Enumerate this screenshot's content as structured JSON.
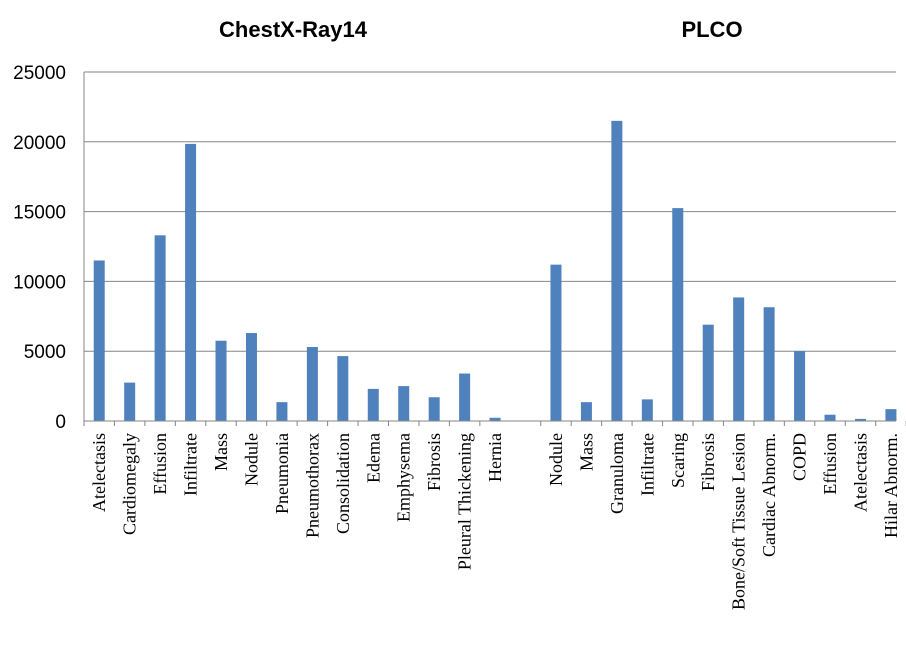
{
  "colors": {
    "bar": "#4f81bd",
    "grid": "#868686",
    "axis": "#868686"
  },
  "chart_data": {
    "type": "bar",
    "ylim": [
      0,
      25000
    ],
    "yticks": [
      "0",
      "5000",
      "10000",
      "15000",
      "20000",
      "25000"
    ],
    "grid": true,
    "groups": [
      {
        "title": "ChestX-Ray14",
        "categories": [
          "Atelectasis",
          "Cardiomegaly",
          "Effusion",
          "Infiltrate",
          "Mass",
          "Nodule",
          "Pneumonia",
          "Pneumothorax",
          "Consolidation",
          "Edema",
          "Emphysema",
          "Fibrosis",
          "Pleural Thickening",
          "Hernia"
        ],
        "values": [
          11500,
          2750,
          13300,
          19850,
          5750,
          6300,
          1350,
          5300,
          4650,
          2300,
          2500,
          1700,
          3400,
          230
        ]
      },
      {
        "title": "PLCO",
        "categories": [
          "Nodule",
          "Mass",
          "Granuloma",
          "Infiltrate",
          "Scaring",
          "Fibrosis",
          "Bone/Soft Tissue Lesion",
          "Cardiac Abnorm.",
          "COPD",
          "Effusion",
          "Atelectasis",
          "Hilar Abnorm."
        ],
        "values": [
          11200,
          1350,
          21500,
          1550,
          15250,
          6900,
          8850,
          8150,
          5000,
          450,
          150,
          850
        ]
      }
    ]
  }
}
